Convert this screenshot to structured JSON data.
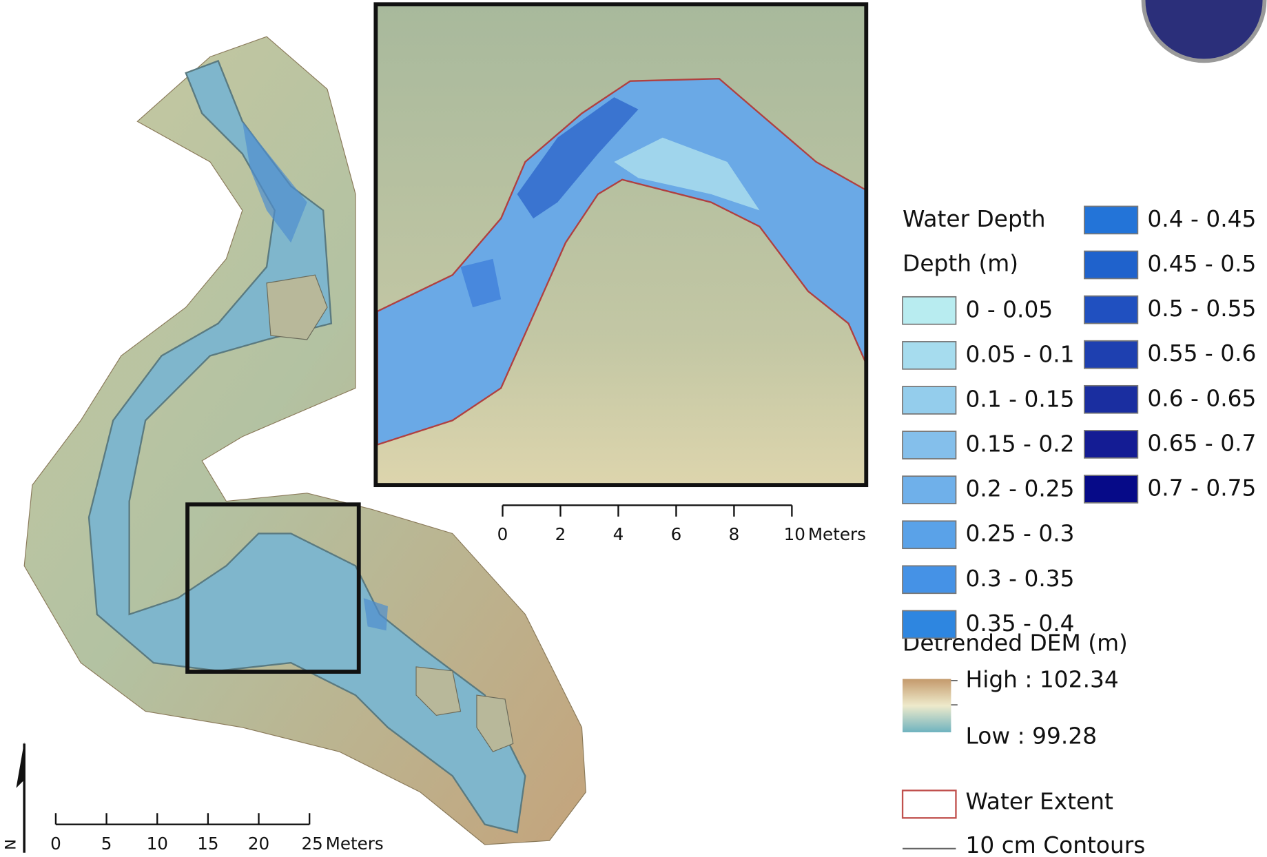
{
  "map": {
    "north_arrow": "N",
    "scale_main": {
      "ticks": [
        0,
        5,
        10,
        15,
        20,
        25
      ],
      "unit": "Meters"
    },
    "scale_inset": {
      "ticks": [
        0,
        2,
        4,
        6,
        8,
        10
      ],
      "unit": "Meters"
    },
    "legend": {
      "water_depth_title": "Water Depth",
      "depth_units": "Depth (m)",
      "classes": [
        {
          "label": "0  - 0.05",
          "color": "#b8ecf0"
        },
        {
          "label": "0.05 - 0.1",
          "color": "#a6dcee"
        },
        {
          "label": "0.1 - 0.15",
          "color": "#94cdec"
        },
        {
          "label": "0.15 - 0.2",
          "color": "#84bfeb"
        },
        {
          "label": "0.2 - 0.25",
          "color": "#6fb0ea"
        },
        {
          "label": "0.25 - 0.3",
          "color": "#5aa2e8"
        },
        {
          "label": "0.3 - 0.35",
          "color": "#4592e6"
        },
        {
          "label": "0.35 - 0.4",
          "color": "#2e86e0"
        },
        {
          "label": "0.4 - 0.45",
          "color": "#2374d8"
        },
        {
          "label": "0.45 - 0.5",
          "color": "#1f62cc"
        },
        {
          "label": "0.5 - 0.55",
          "color": "#2050c0"
        },
        {
          "label": "0.55 - 0.6",
          "color": "#1e40b0"
        },
        {
          "label": "0.6 - 0.65",
          "color": "#1a2ea0"
        },
        {
          "label": "0.65 - 0.7",
          "color": "#141c94"
        },
        {
          "label": "0.7 - 0.75",
          "color": "#060a88"
        }
      ],
      "dem_title": "Detrended DEM (m)",
      "dem_high": "High : 102.34",
      "dem_low": "Low : 99.28",
      "water_extent": "Water Extent",
      "contours": "10 cm Contours"
    }
  }
}
